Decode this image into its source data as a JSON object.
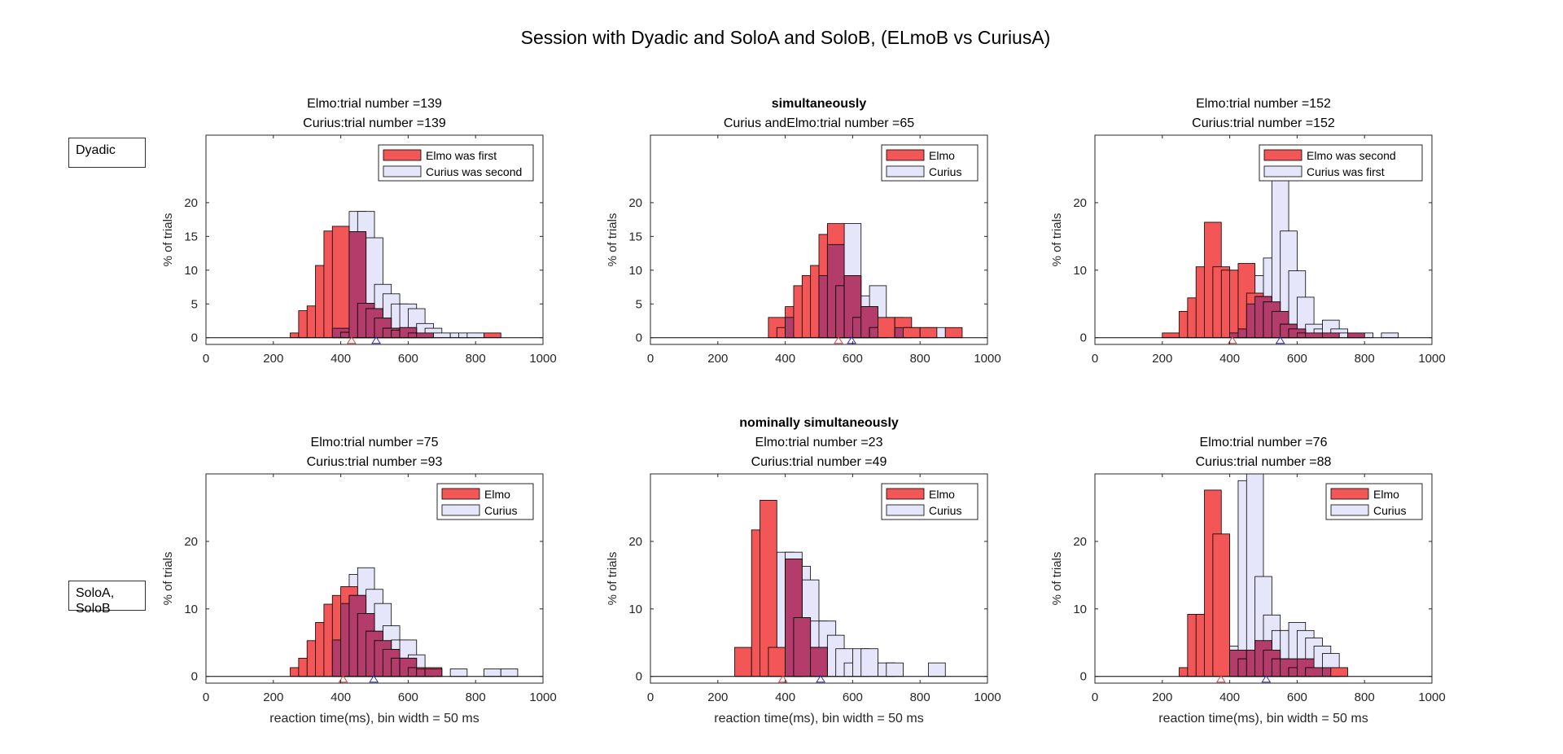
{
  "figure_title": "Session with  Dyadic and SoloA and SoloB, (ELmoB vs CuriusA)",
  "row_labels": {
    "dyadic": "Dyadic",
    "solo_line1": "SoloA,",
    "solo_line2": "SoloB"
  },
  "colors": {
    "elmo": "#f25656",
    "curius": "#e6e6fa",
    "overlap": "#b43c6a",
    "edge": "#000000",
    "elmo_marker": "#e0403f",
    "curius_marker": "#2a2ad0"
  },
  "chart_data": [
    {
      "type": "bar",
      "panel": "dyadic-left",
      "title_bold": "",
      "title_lines": [
        "Elmo:trial number =139",
        "Curius:trial number =139"
      ],
      "xlabel": "",
      "ylabel": "% of trials",
      "xlim": [
        0,
        1000
      ],
      "ylim": [
        -1,
        30
      ],
      "yticks": [
        0,
        5,
        10,
        15,
        20
      ],
      "xticks": [
        0,
        200,
        400,
        600,
        800,
        1000
      ],
      "bin_width": 50,
      "legend": [
        "Elmo was first",
        "Curius was second"
      ],
      "legend_position": "top-right",
      "series": [
        {
          "name": "Elmo was first",
          "x": [
            275,
            300,
            325,
            350,
            375,
            400,
            425,
            450,
            475,
            500,
            525,
            550,
            575,
            600,
            625,
            650,
            675,
            700,
            725,
            750,
            775,
            800,
            825,
            850
          ],
          "values": [
            0.7,
            4,
            4.7,
            10.7,
            15.8,
            16.5,
            0.8,
            15.7,
            5.1,
            4.3,
            2.9,
            1.4,
            1.1,
            1.5,
            0.7,
            0.7,
            0,
            0,
            0,
            0,
            0,
            0,
            0,
            0.7
          ]
        },
        {
          "name": "Curius was second",
          "x": [
            375,
            400,
            425,
            450,
            475,
            500,
            525,
            550,
            575,
            600,
            625,
            650,
            675,
            700,
            725,
            750,
            775,
            800,
            825,
            850
          ],
          "values": [
            0,
            1.4,
            2,
            18.7,
            18.7,
            14.8,
            7.9,
            6.5,
            5,
            5,
            4.3,
            2.1,
            1.4,
            0.7,
            0,
            0.7,
            0.7,
            0.7,
            0,
            0
          ]
        }
      ],
      "markers": {
        "elmo": 432,
        "curius": 505
      }
    },
    {
      "type": "bar",
      "panel": "dyadic-middle",
      "title_bold": "simultaneously",
      "title_lines": [
        "Curius andElmo:trial number =65"
      ],
      "xlabel": "",
      "ylabel": "% of trials",
      "xlim": [
        0,
        1000
      ],
      "ylim": [
        -1,
        30
      ],
      "yticks": [
        0,
        5,
        10,
        15,
        20
      ],
      "xticks": [
        0,
        200,
        400,
        600,
        800,
        1000
      ],
      "bin_width": 50,
      "legend": [
        "Elmo",
        "Curius"
      ],
      "legend_position": "top-right",
      "series": [
        {
          "name": "Elmo",
          "x": [
            375,
            400,
            425,
            450,
            475,
            500,
            525,
            550,
            575,
            600,
            625,
            650,
            675,
            700,
            725,
            750,
            775,
            800,
            825,
            850,
            875,
            900
          ],
          "values": [
            3,
            1.5,
            4.6,
            7.7,
            9.2,
            10.7,
            15.3,
            16.9,
            7.7,
            9.2,
            3,
            4.6,
            1.5,
            3,
            0,
            3,
            1.5,
            0,
            1.5,
            0,
            0,
            1.5
          ]
        },
        {
          "name": "Curius",
          "x": [
            375,
            400,
            425,
            450,
            475,
            500,
            525,
            550,
            575,
            600,
            625,
            650,
            675,
            700,
            725,
            750,
            775,
            800,
            825,
            850,
            875,
            900
          ],
          "values": [
            0,
            0,
            3,
            0,
            0,
            0,
            9.2,
            13.8,
            15.4,
            16.9,
            4.6,
            6.2,
            7.7,
            0,
            3,
            1.5,
            0,
            1.5,
            0,
            1.5,
            0,
            0
          ]
        }
      ],
      "markers": {
        "elmo": 558,
        "curius": 597
      }
    },
    {
      "type": "bar",
      "panel": "dyadic-right",
      "title_bold": "",
      "title_lines": [
        "Elmo:trial number =152",
        "Curius:trial number =152"
      ],
      "xlabel": "",
      "ylabel": "% of trials",
      "xlim": [
        0,
        1000
      ],
      "ylim": [
        -1,
        30
      ],
      "yticks": [
        0,
        10,
        20
      ],
      "xticks": [
        0,
        200,
        400,
        600,
        800,
        1000
      ],
      "bin_width": 50,
      "legend": [
        "Elmo was second",
        "Curius was first"
      ],
      "legend_position": "top-right",
      "series": [
        {
          "name": "Elmo was second",
          "x": [
            225,
            250,
            275,
            300,
            325,
            350,
            375,
            400,
            425,
            450,
            475,
            500,
            525,
            550,
            575,
            600,
            625,
            650,
            675,
            700,
            725,
            750,
            775,
            800,
            825,
            850
          ],
          "values": [
            0.7,
            0,
            3.9,
            5.9,
            10.5,
            17.1,
            10.5,
            10,
            10,
            11,
            6.6,
            6.1,
            5.3,
            3.9,
            2,
            1.3,
            0.7,
            0.7,
            0,
            0.7,
            0,
            0,
            0.7,
            0,
            0,
            0
          ]
        },
        {
          "name": "Curius was first",
          "x": [
            225,
            250,
            275,
            300,
            325,
            350,
            375,
            400,
            425,
            450,
            475,
            500,
            525,
            550,
            575,
            600,
            625,
            650,
            675,
            700,
            725,
            750,
            775,
            800,
            825,
            850,
            875
          ],
          "values": [
            0,
            0,
            0,
            0,
            0,
            0,
            0,
            0,
            0.7,
            1.3,
            5,
            9.2,
            11.8,
            24.3,
            15.8,
            9.9,
            6,
            2,
            1.3,
            2.6,
            1.3,
            0.7,
            0.7,
            0.7,
            0,
            0,
            0.7
          ]
        }
      ],
      "markers": {
        "elmo": 408,
        "curius": 550
      }
    },
    {
      "type": "bar",
      "panel": "solo-left",
      "title_bold": "",
      "title_lines": [
        "Elmo:trial number =75",
        "Curius:trial number =93"
      ],
      "xlabel": "reaction time(ms), bin width = 50 ms",
      "ylabel": "% of trials",
      "xlim": [
        0,
        1000
      ],
      "ylim": [
        -1,
        30
      ],
      "yticks": [
        0,
        10,
        20
      ],
      "xticks": [
        0,
        200,
        400,
        600,
        800,
        1000
      ],
      "bin_width": 50,
      "legend": [
        "Elmo",
        "Curius"
      ],
      "legend_position": "top-right",
      "series": [
        {
          "name": "Elmo",
          "x": [
            275,
            300,
            325,
            350,
            375,
            400,
            425,
            450,
            475,
            500,
            525,
            550,
            575,
            600,
            625,
            650,
            675
          ],
          "values": [
            1.3,
            2.7,
            5.3,
            8,
            10.7,
            12,
            13.3,
            12,
            9.3,
            6.7,
            5.3,
            4,
            2.7,
            2.7,
            1.3,
            1.3,
            1.3
          ]
        },
        {
          "name": "Curius",
          "x": [
            375,
            400,
            425,
            450,
            475,
            500,
            525,
            550,
            575,
            600,
            625,
            650,
            675,
            700,
            725,
            750,
            775,
            800,
            825,
            850,
            875,
            900
          ],
          "values": [
            0,
            5.4,
            10.8,
            15.1,
            16.1,
            12.9,
            10.8,
            7.5,
            5.4,
            5.4,
            3.2,
            1.1,
            1.1,
            0,
            0,
            1.1,
            0,
            0,
            0,
            1.1,
            0,
            1.1
          ]
        }
      ],
      "markers": {
        "elmo": 407,
        "curius": 498
      }
    },
    {
      "type": "bar",
      "panel": "solo-middle",
      "title_bold": "nominally simultaneously",
      "title_lines": [
        "Elmo:trial number =23",
        "Curius:trial number =49"
      ],
      "xlabel": "reaction time(ms), bin width = 50 ms",
      "ylabel": "% of trials",
      "xlim": [
        0,
        1000
      ],
      "ylim": [
        -1,
        30
      ],
      "yticks": [
        0,
        10,
        20
      ],
      "xticks": [
        0,
        200,
        400,
        600,
        800,
        1000
      ],
      "bin_width": 50,
      "legend": [
        "Elmo",
        "Curius"
      ],
      "legend_position": "top-right",
      "series": [
        {
          "name": "Elmo",
          "x": [
            275,
            300,
            325,
            350,
            375,
            400,
            425,
            450,
            475,
            500,
            525
          ],
          "values": [
            4.3,
            0,
            21.7,
            26.1,
            4.3,
            0,
            17.4,
            8.7,
            0,
            4.3,
            0
          ]
        },
        {
          "name": "Curius",
          "x": [
            375,
            400,
            425,
            450,
            475,
            500,
            525,
            550,
            575,
            600,
            625,
            650,
            675,
            700,
            725,
            750,
            775,
            800,
            825,
            850
          ],
          "values": [
            0,
            18.4,
            18.4,
            16.3,
            14.3,
            8.2,
            8.2,
            6.1,
            4.1,
            2,
            4.1,
            4.1,
            0,
            2,
            2,
            0,
            0,
            0,
            0,
            2
          ]
        }
      ],
      "markers": {
        "elmo": 393,
        "curius": 505
      }
    },
    {
      "type": "bar",
      "panel": "solo-right",
      "title_bold": "",
      "title_lines": [
        "Elmo:trial number =76",
        "Curius:trial number =88"
      ],
      "xlabel": "reaction time(ms), bin width = 50 ms",
      "ylabel": "% of trials",
      "xlim": [
        0,
        1000
      ],
      "ylim": [
        -1,
        30
      ],
      "yticks": [
        0,
        10,
        20
      ],
      "xticks": [
        0,
        200,
        400,
        600,
        800,
        1000
      ],
      "bin_width": 50,
      "legend": [
        "Elmo",
        "Curius"
      ],
      "legend_position": "top-right",
      "series": [
        {
          "name": "Elmo",
          "x": [
            275,
            300,
            325,
            350,
            375,
            400,
            425,
            450,
            475,
            500,
            525,
            550,
            575,
            600,
            625,
            650,
            675,
            700,
            725
          ],
          "values": [
            1.3,
            9.2,
            9.2,
            27.6,
            21.1,
            0,
            3.9,
            2.6,
            3.9,
            5.3,
            3.9,
            2.6,
            2.6,
            1.3,
            2.6,
            1.3,
            0,
            1.3,
            1.3
          ]
        },
        {
          "name": "Curius",
          "x": [
            375,
            400,
            425,
            450,
            475,
            500,
            525,
            550,
            575,
            600,
            625,
            650,
            675,
            700
          ],
          "values": [
            0,
            3.4,
            4.5,
            29,
            30,
            14.8,
            9.1,
            6.8,
            6.8,
            8,
            6.8,
            5.7,
            4.5,
            3.4
          ]
        }
      ],
      "markers": {
        "elmo": 374,
        "curius": 508
      }
    }
  ]
}
